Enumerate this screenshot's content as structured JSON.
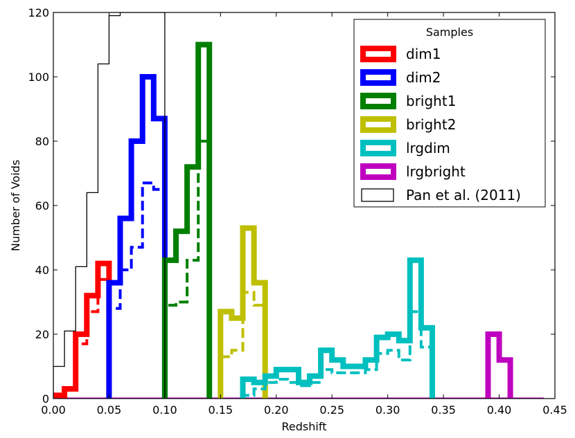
{
  "chart_data": {
    "type": "histogram",
    "xlabel": "Redshift",
    "ylabel": "Number of Voids",
    "xlim": [
      0.0,
      0.45
    ],
    "ylim": [
      0,
      120
    ],
    "xticks": [
      "0.00",
      "0.05",
      "0.10",
      "0.15",
      "0.20",
      "0.25",
      "0.30",
      "0.35",
      "0.40",
      "0.45"
    ],
    "yticks": [
      "0",
      "20",
      "40",
      "60",
      "80",
      "100",
      "120"
    ],
    "legend": {
      "title": "Samples",
      "position": "top-right",
      "entries": [
        "dim1",
        "dim2",
        "bright1",
        "bright2",
        "lrgdim",
        "lrgbright",
        "Pan et al. (2011)"
      ]
    },
    "series": [
      {
        "name": "dim1",
        "color": "#ff0000",
        "style": "thick",
        "bins": [
          0.0,
          0.01,
          0.02,
          0.03,
          0.04,
          0.05
        ],
        "solid": [
          1,
          3,
          20,
          32,
          42
        ],
        "dashed": [
          1,
          3,
          17,
          27,
          37
        ]
      },
      {
        "name": "dim2",
        "color": "#0000ff",
        "style": "thick",
        "bins": [
          0.05,
          0.06,
          0.07,
          0.08,
          0.09,
          0.1
        ],
        "solid": [
          36,
          56,
          80,
          100,
          87
        ],
        "dashed": [
          28,
          40,
          47,
          67,
          65
        ]
      },
      {
        "name": "bright1",
        "color": "#007f00",
        "style": "thick",
        "bins": [
          0.1,
          0.11,
          0.12,
          0.13,
          0.14
        ],
        "solid": [
          43,
          52,
          72,
          110
        ],
        "dashed": [
          29,
          30,
          43,
          80
        ]
      },
      {
        "name": "bright2",
        "color": "#bfbf00",
        "style": "thick",
        "bins": [
          0.15,
          0.16,
          0.17,
          0.18,
          0.19
        ],
        "solid": [
          27,
          25,
          53,
          36
        ],
        "dashed": [
          13,
          15,
          33,
          29
        ]
      },
      {
        "name": "lrgdim",
        "color": "#00bfbf",
        "style": "thick",
        "bins": [
          0.17,
          0.18,
          0.19,
          0.2,
          0.21,
          0.22,
          0.23,
          0.24,
          0.25,
          0.26,
          0.27,
          0.28,
          0.29,
          0.3,
          0.31,
          0.32,
          0.33,
          0.34
        ],
        "solid": [
          6,
          5,
          7,
          9,
          9,
          5,
          7,
          15,
          12,
          10,
          10,
          12,
          19,
          20,
          18,
          43,
          22
        ],
        "dashed": [
          1,
          3,
          5,
          6,
          5,
          4,
          5,
          9,
          8,
          8,
          8,
          9,
          14,
          15,
          12,
          27,
          16
        ]
      },
      {
        "name": "lrgbright",
        "color": "#bf00bf",
        "style": "thick",
        "bins": [
          0.39,
          0.4,
          0.41
        ],
        "solid": [
          20,
          12
        ],
        "dashed": [
          20,
          12
        ]
      },
      {
        "name": "Pan et al. (2011)",
        "color": "#000000",
        "style": "thin",
        "bins": [
          0.0,
          0.01,
          0.02,
          0.03,
          0.04,
          0.05,
          0.06,
          0.07,
          0.08,
          0.09,
          0.1
        ],
        "solid": [
          10,
          21,
          41,
          64,
          104,
          119,
          120,
          120,
          120,
          120
        ]
      }
    ]
  }
}
